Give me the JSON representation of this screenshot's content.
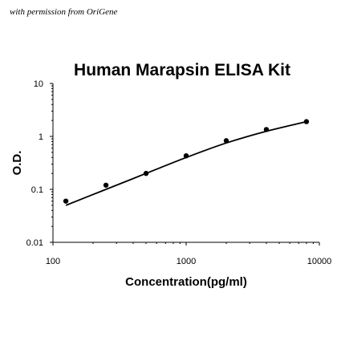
{
  "credit": "with permission from OriGene",
  "chart_data": {
    "type": "scatter",
    "title": "Human Marapsin ELISA Kit",
    "xlabel": "Concentration(pg/ml)",
    "ylabel": "O.D.",
    "xscale": "log",
    "yscale": "log",
    "xlim": [
      100,
      10000
    ],
    "ylim": [
      0.01,
      10
    ],
    "x_ticks": [
      "100",
      "1000",
      "10000"
    ],
    "y_ticks": [
      "0.01",
      "0.1",
      "1",
      "10"
    ],
    "grid": false,
    "legend": "none",
    "series": [
      {
        "points": [
          {
            "x": 125,
            "y": 0.06
          },
          {
            "x": 250,
            "y": 0.12
          },
          {
            "x": 500,
            "y": 0.2
          },
          {
            "x": 1000,
            "y": 0.43
          },
          {
            "x": 2000,
            "y": 0.83
          },
          {
            "x": 4000,
            "y": 1.35
          },
          {
            "x": 8000,
            "y": 1.9
          }
        ],
        "fit": {
          "type": "curve",
          "x": [
            125,
            250,
            500,
            1000,
            2000,
            4000,
            8000
          ],
          "y": [
            0.05,
            0.1,
            0.2,
            0.4,
            0.75,
            1.25,
            1.9
          ]
        },
        "color": "#000000"
      }
    ]
  }
}
